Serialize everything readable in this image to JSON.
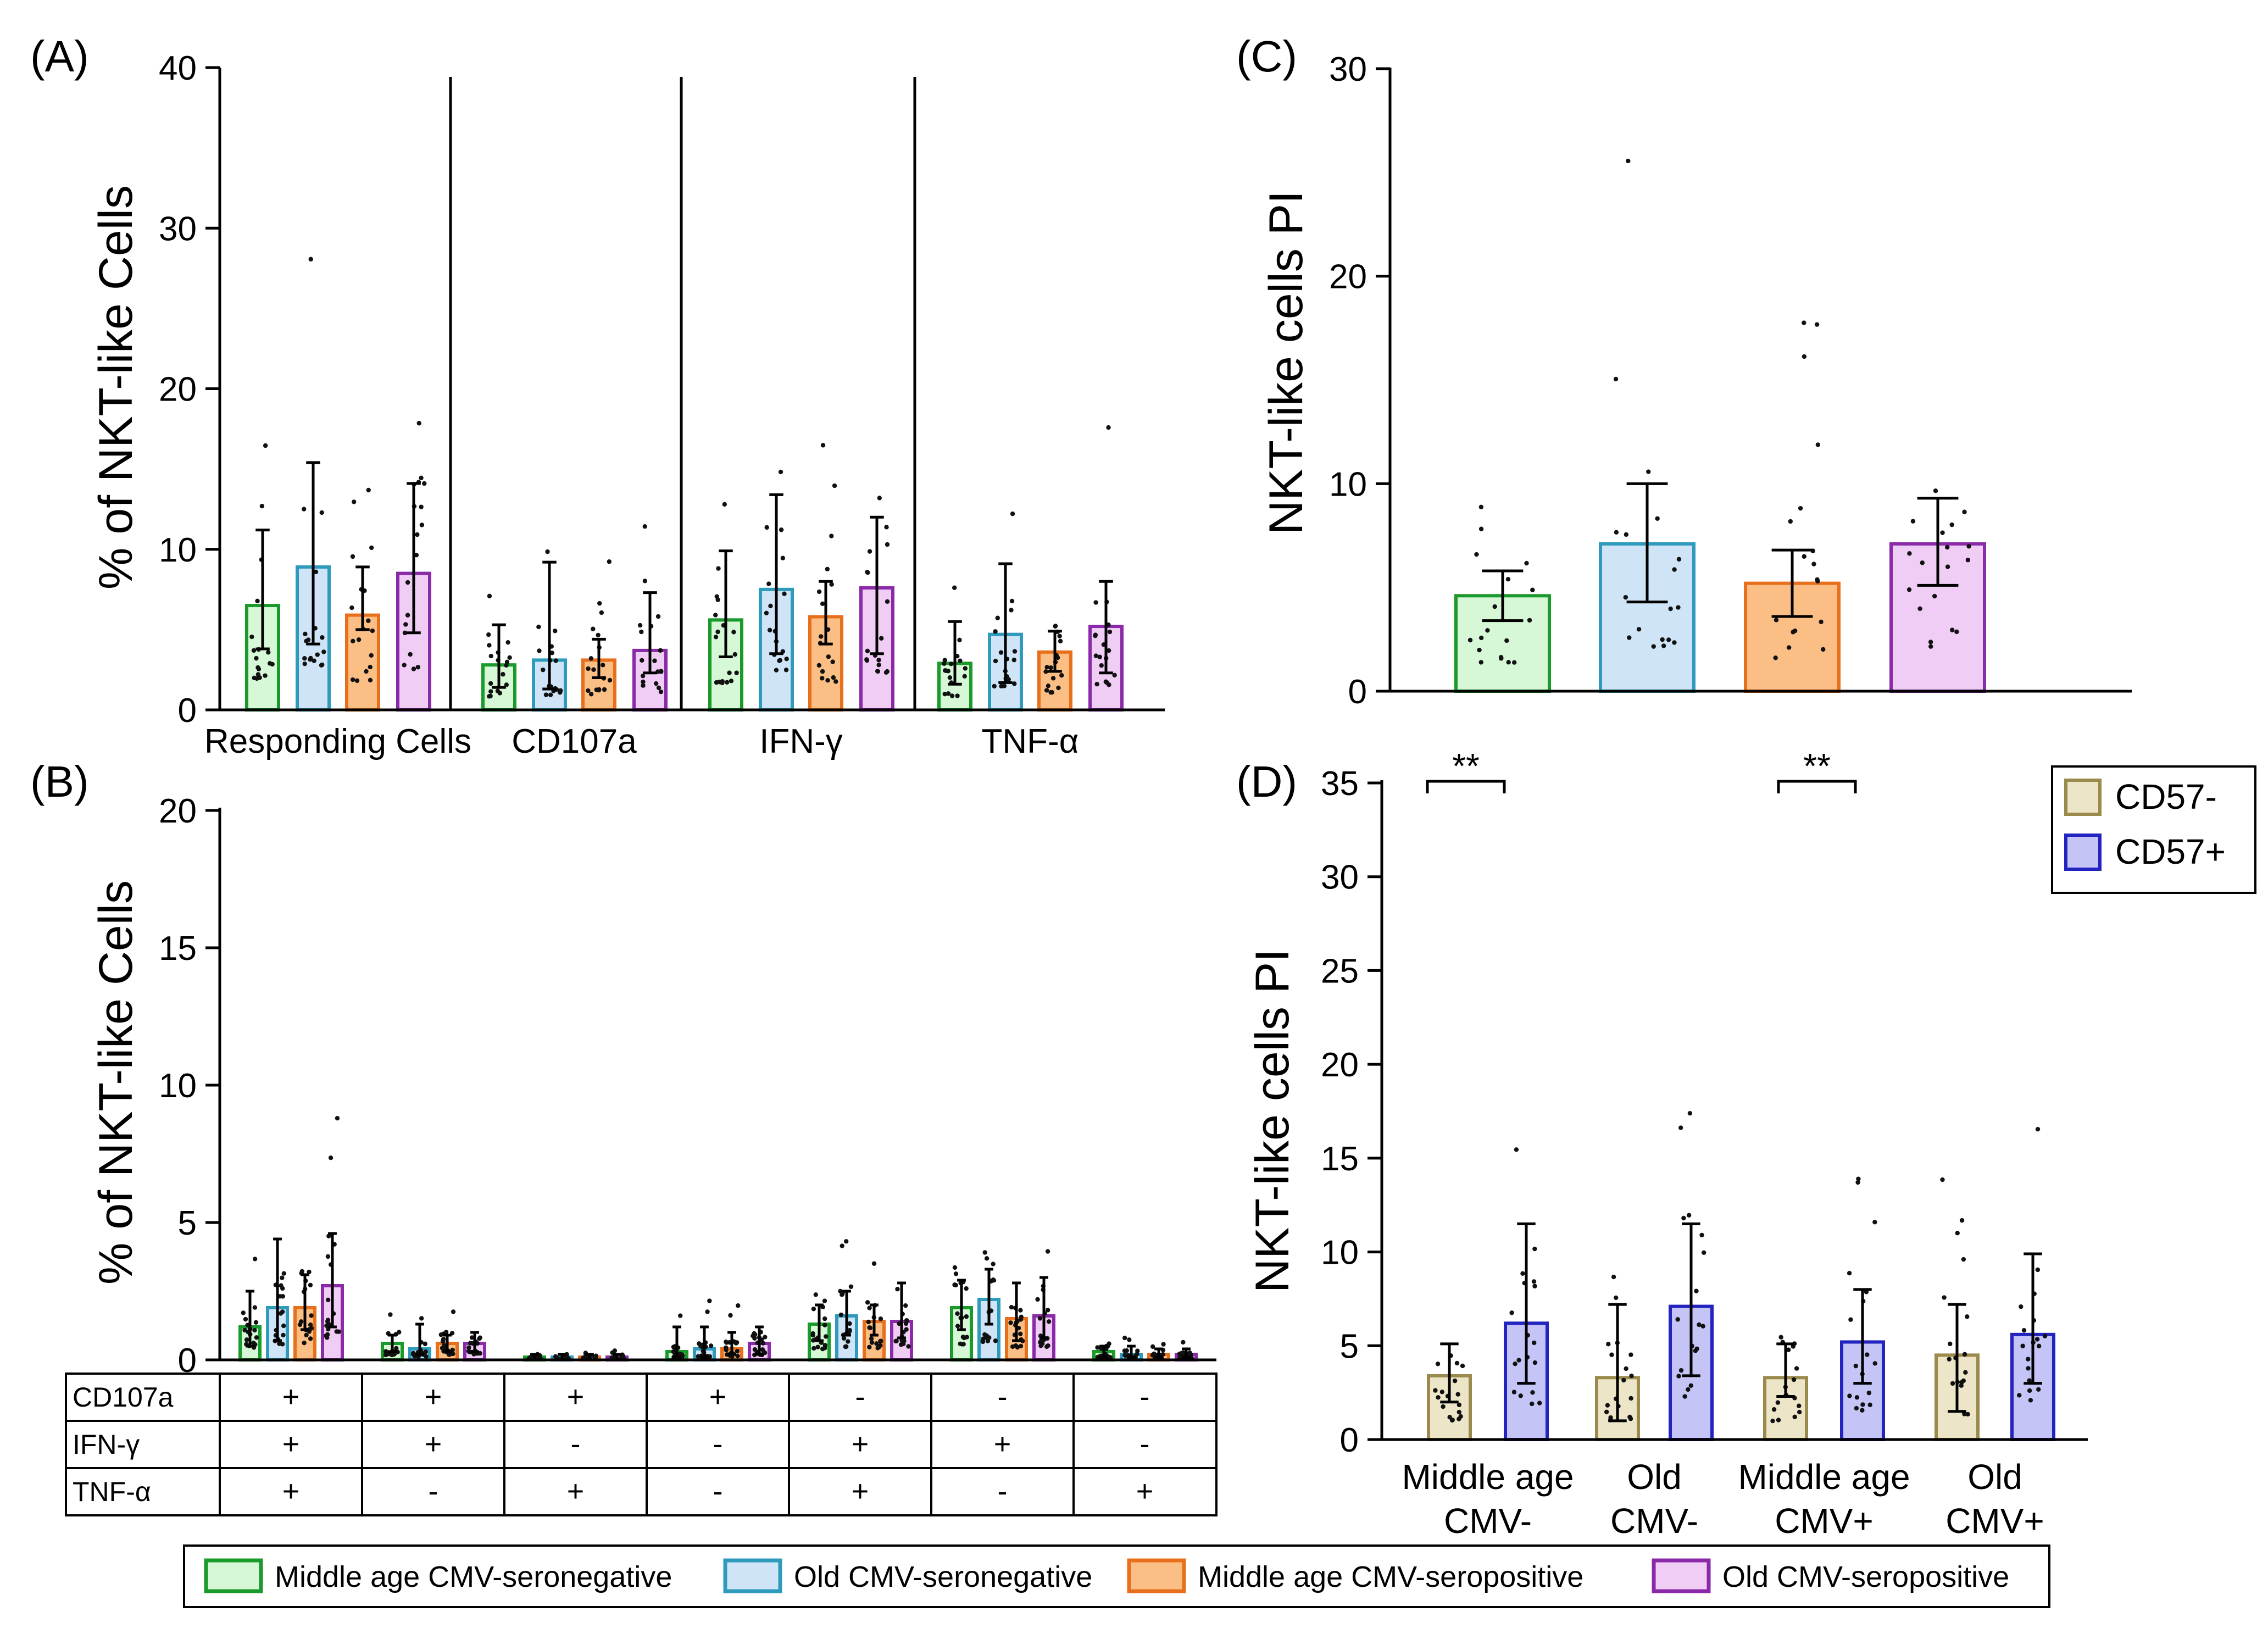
{
  "colors": {
    "mc_fill": "#d6f8d6",
    "mc_stroke": "#1a9a2a",
    "oc_fill": "#cfe4f6",
    "oc_stroke": "#2e9bbd",
    "mp_fill": "#fbbf86",
    "mp_stroke": "#e8701c",
    "op_fill": "#f0cdf5",
    "op_stroke": "#8a2aa8",
    "cd57neg_fill": "#ede5c8",
    "cd57neg_stroke": "#9a8a4c",
    "cd57pos_fill": "#c4c4f7",
    "cd57pos_stroke": "#2323c0"
  },
  "legend": {
    "items": [
      {
        "label": "Middle age CMV-seronegative"
      },
      {
        "label": "Old CMV-seronegative"
      },
      {
        "label": "Middle age  CMV-seropositive"
      },
      {
        "label": "Old CMV-seropositive"
      }
    ]
  },
  "chart_data": [
    {
      "panel": "(A)",
      "type": "bar",
      "ylabel": "% of NKT-like Cells",
      "ylim": [
        0,
        40
      ],
      "yticks": [
        "0",
        "10",
        "20",
        "30",
        "40"
      ],
      "categories": [
        "Responding Cells",
        "CD107a",
        "IFN-γ",
        "TNF-α"
      ],
      "series": [
        {
          "values": [
            6.5,
            2.8,
            5.6,
            2.9
          ],
          "err_low": [
            3.8,
            1.4,
            3.3,
            1.6
          ],
          "err_high": [
            11.2,
            5.3,
            9.9,
            5.5
          ]
        },
        {
          "values": [
            8.9,
            3.1,
            7.5,
            4.7
          ],
          "err_low": [
            4.1,
            1.3,
            3.5,
            1.7
          ],
          "err_high": [
            15.4,
            9.2,
            13.4,
            9.1
          ]
        },
        {
          "values": [
            5.9,
            3.1,
            5.8,
            3.6
          ],
          "err_low": [
            5.0,
            2.0,
            4.1,
            2.4
          ],
          "err_high": [
            8.9,
            4.4,
            8.0,
            4.9
          ]
        },
        {
          "values": [
            8.5,
            3.7,
            7.6,
            5.2
          ],
          "err_low": [
            4.8,
            2.3,
            3.5,
            2.3
          ],
          "err_high": [
            14.1,
            7.3,
            12.0,
            8.0
          ]
        }
      ]
    },
    {
      "panel": "(B)",
      "type": "bar",
      "ylabel": "% of NKT-like Cells",
      "ylim": [
        0,
        20
      ],
      "yticks": [
        "0",
        "5",
        "10",
        "15",
        "20"
      ],
      "table": {
        "row_labels": [
          "CD107a",
          "IFN-γ",
          "TNF-α"
        ],
        "columns": [
          [
            "+",
            "+",
            "+"
          ],
          [
            "+",
            "+",
            "-"
          ],
          [
            "+",
            "-",
            "+"
          ],
          [
            "+",
            "-",
            "-"
          ],
          [
            "-",
            "+",
            "+"
          ],
          [
            "-",
            "+",
            "-"
          ],
          [
            "-",
            "-",
            "+"
          ]
        ]
      },
      "series": [
        {
          "values": [
            1.2,
            0.6,
            0.1,
            0.3,
            1.3,
            1.9,
            0.3
          ],
          "err_low": [
            0.5,
            0.3,
            0.0,
            0.1,
            0.7,
            1.1,
            0.1
          ],
          "err_high": [
            2.5,
            0.9,
            0.2,
            1.2,
            2.0,
            2.9,
            0.5
          ]
        },
        {
          "values": [
            1.9,
            0.4,
            0.1,
            0.4,
            1.6,
            2.2,
            0.2
          ],
          "err_low": [
            0.7,
            0.2,
            0.0,
            0.1,
            0.9,
            1.3,
            0.1
          ],
          "err_high": [
            4.4,
            1.3,
            0.2,
            1.2,
            2.5,
            3.3,
            0.5
          ]
        },
        {
          "values": [
            1.9,
            0.6,
            0.1,
            0.4,
            1.4,
            1.5,
            0.2
          ],
          "err_low": [
            1.1,
            0.3,
            0.0,
            0.2,
            0.9,
            0.7,
            0.1
          ],
          "err_high": [
            3.1,
            0.9,
            0.2,
            1.0,
            2.0,
            2.8,
            0.4
          ]
        },
        {
          "values": [
            2.7,
            0.6,
            0.1,
            0.6,
            1.4,
            1.6,
            0.2
          ],
          "err_low": [
            1.2,
            0.3,
            0.0,
            0.2,
            0.8,
            0.8,
            0.1
          ],
          "err_high": [
            4.6,
            1.0,
            0.2,
            1.2,
            2.8,
            3.0,
            0.4
          ]
        }
      ]
    },
    {
      "panel": "(C)",
      "type": "bar",
      "ylabel": "NKT-like cells PI",
      "ylim": [
        0,
        30
      ],
      "yticks": [
        "0",
        "10",
        "20",
        "30"
      ],
      "values": [
        4.6,
        7.1,
        5.2,
        7.1
      ],
      "err_low": [
        3.4,
        4.3,
        3.6,
        5.1
      ],
      "err_high": [
        5.8,
        10.0,
        6.8,
        9.3
      ]
    },
    {
      "panel": "(D)",
      "type": "bar",
      "ylabel": "NKT-like cells PI",
      "ylim": [
        0,
        35
      ],
      "yticks": [
        "0",
        "5",
        "10",
        "15",
        "20",
        "25",
        "30",
        "35"
      ],
      "categories": [
        [
          "Middle age",
          "CMV-"
        ],
        [
          "Old",
          "CMV-"
        ],
        [
          "Middle age",
          "CMV+"
        ],
        [
          "Old",
          "CMV+"
        ]
      ],
      "legend": [
        "CD57-",
        "CD57+"
      ],
      "significance": "**",
      "series": [
        {
          "name": "CD57-",
          "values": [
            3.4,
            3.3,
            3.3,
            4.5
          ],
          "err_low": [
            2.0,
            1.0,
            2.3,
            1.5
          ],
          "err_high": [
            5.1,
            7.2,
            5.1,
            7.2
          ]
        },
        {
          "name": "CD57+",
          "values": [
            6.2,
            7.1,
            5.2,
            5.6
          ],
          "err_low": [
            3.0,
            3.4,
            3.0,
            3.0
          ],
          "err_high": [
            11.5,
            11.5,
            8.0,
            9.9
          ]
        }
      ]
    }
  ]
}
